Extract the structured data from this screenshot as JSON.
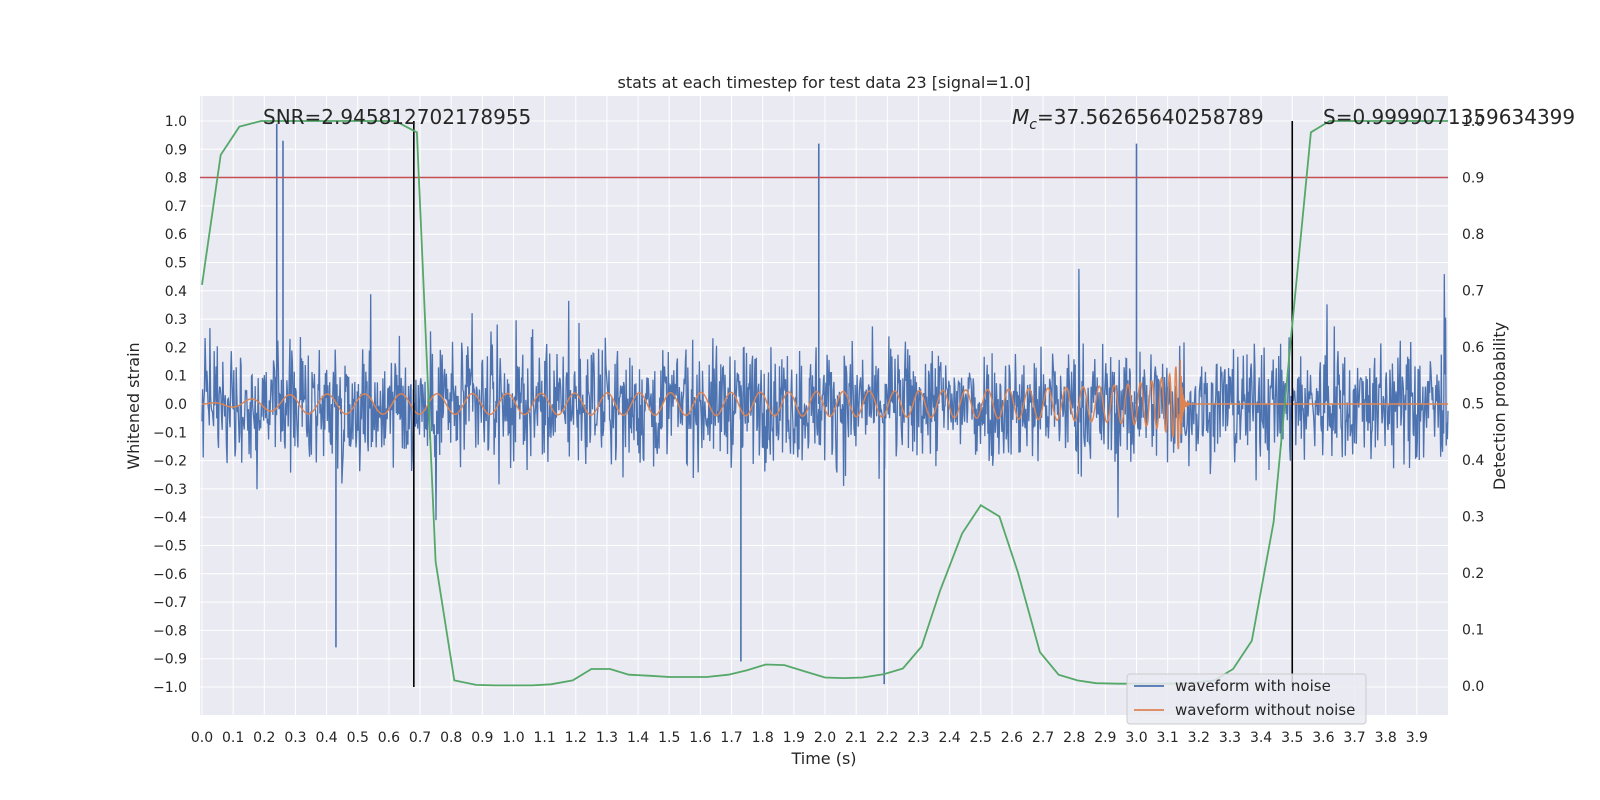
{
  "chart_data": {
    "type": "line",
    "title": "stats at each timestep for test data 23 [signal=1.0]",
    "xlabel": "Time (s)",
    "ylabel": "Whitened strain",
    "ylabel_right": "Detection probability",
    "xlim": [
      0.0,
      4.0
    ],
    "ylim": [
      -1.1,
      1.1
    ],
    "ylim_right": [
      -0.05,
      1.0
    ],
    "x_ticks": [
      "0.0",
      "0.1",
      "0.2",
      "0.3",
      "0.4",
      "0.5",
      "0.6",
      "0.7",
      "0.8",
      "0.9",
      "1.0",
      "1.1",
      "1.2",
      "1.3",
      "1.4",
      "1.5",
      "1.6",
      "1.7",
      "1.8",
      "1.9",
      "2.0",
      "2.1",
      "2.2",
      "2.3",
      "2.4",
      "2.5",
      "2.6",
      "2.7",
      "2.8",
      "2.9",
      "3.0",
      "3.1",
      "3.2",
      "3.3",
      "3.4",
      "3.5",
      "3.6",
      "3.7",
      "3.8",
      "3.9"
    ],
    "y_ticks": [
      "1.0",
      "0.9",
      "0.8",
      "0.7",
      "0.6",
      "0.5",
      "0.4",
      "0.3",
      "0.2",
      "0.1",
      "0.0",
      "−0.1",
      "−0.2",
      "−0.3",
      "−0.4",
      "−0.5",
      "−0.6",
      "−0.7",
      "−0.8",
      "−0.9",
      "−1.0"
    ],
    "y_right_ticks": [
      "1.0",
      "0.9",
      "0.8",
      "0.7",
      "0.6",
      "0.5",
      "0.4",
      "0.3",
      "0.2",
      "0.1",
      "0.0"
    ],
    "annotations": {
      "snr": "SNR=2.945812702178955",
      "mc_symbol": "M",
      "mc_sub": "c",
      "mc_value": "=37.56265640258789",
      "s": "S=0.9999071359634399"
    },
    "threshold_line": {
      "y_right": 0.9,
      "color": "#c44e52"
    },
    "vertical_lines": [
      0.68,
      3.5
    ],
    "legend": {
      "position": "lower-right",
      "entries": [
        {
          "label": "waveform with noise",
          "color": "#4c72b0"
        },
        {
          "label": "waveform without noise",
          "color": "#dd8452"
        }
      ]
    },
    "series": [
      {
        "name": "waveform with noise",
        "color": "#4c72b0",
        "kind": "noise",
        "amplitude_range": [
          -1.0,
          1.0
        ],
        "sample_rate_hz": 512
      },
      {
        "name": "waveform without noise",
        "color": "#dd8452",
        "kind": "chirp",
        "peak_time": 3.14,
        "peak_amplitude": 0.18
      },
      {
        "name": "detection probability",
        "color": "#55a868",
        "axis": "right",
        "x": [
          0.0,
          0.06,
          0.12,
          0.19,
          0.25,
          0.31,
          0.37,
          0.44,
          0.5,
          0.56,
          0.62,
          0.69,
          0.75,
          0.81,
          0.88,
          0.94,
          1.0,
          1.06,
          1.12,
          1.19,
          1.25,
          1.31,
          1.37,
          1.44,
          1.5,
          1.56,
          1.62,
          1.69,
          1.75,
          1.81,
          1.87,
          1.94,
          2.0,
          2.06,
          2.12,
          2.19,
          2.25,
          2.31,
          2.37,
          2.44,
          2.5,
          2.56,
          2.62,
          2.69,
          2.75,
          2.81,
          2.87,
          2.94,
          3.0,
          3.06,
          3.12,
          3.19,
          3.25,
          3.31,
          3.37,
          3.44,
          3.5,
          3.56,
          3.62,
          3.69,
          3.75,
          3.81,
          3.87,
          3.94,
          4.0
        ],
        "y": [
          0.71,
          0.94,
          0.99,
          1.0,
          1.0,
          1.0,
          1.0,
          1.0,
          1.0,
          1.0,
          1.0,
          0.98,
          0.22,
          0.01,
          0.002,
          0.001,
          0.001,
          0.001,
          0.003,
          0.01,
          0.03,
          0.03,
          0.02,
          0.018,
          0.016,
          0.016,
          0.016,
          0.02,
          0.028,
          0.038,
          0.037,
          0.025,
          0.015,
          0.014,
          0.015,
          0.021,
          0.031,
          0.07,
          0.17,
          0.27,
          0.32,
          0.3,
          0.2,
          0.06,
          0.02,
          0.01,
          0.005,
          0.004,
          0.004,
          0.004,
          0.004,
          0.006,
          0.01,
          0.03,
          0.08,
          0.29,
          0.64,
          0.98,
          1.0,
          1.0,
          1.0,
          1.0,
          1.0,
          1.0,
          1.0
        ]
      }
    ]
  }
}
